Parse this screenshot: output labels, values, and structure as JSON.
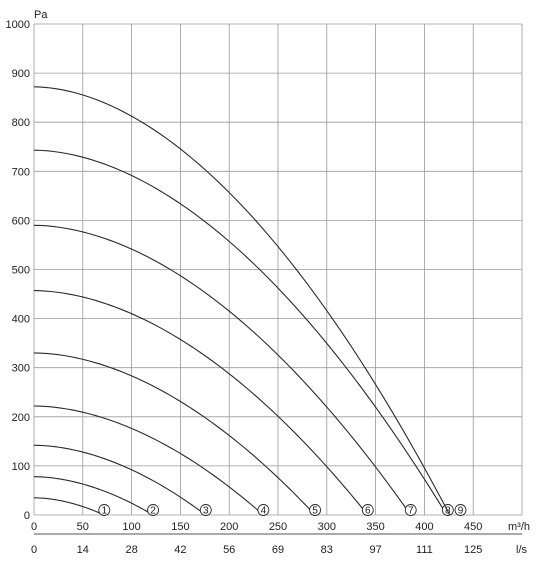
{
  "chart_data": {
    "type": "line",
    "y_unit": "Pa",
    "x_unit": "m³/h",
    "x2_unit": "l/s",
    "ylim": [
      0,
      1000
    ],
    "xlim": [
      0,
      500
    ],
    "grid": true,
    "y_ticks": [
      0,
      100,
      200,
      300,
      400,
      500,
      600,
      700,
      800,
      900,
      1000
    ],
    "x_ticks": [
      0,
      50,
      100,
      150,
      200,
      250,
      300,
      350,
      400,
      450
    ],
    "x2_ticks": [
      {
        "m3h": 0,
        "label": "0"
      },
      {
        "m3h": 50,
        "label": "14"
      },
      {
        "m3h": 100,
        "label": "28"
      },
      {
        "m3h": 150,
        "label": "42"
      },
      {
        "m3h": 200,
        "label": "56"
      },
      {
        "m3h": 250,
        "label": "69"
      },
      {
        "m3h": 300,
        "label": "83"
      },
      {
        "m3h": 350,
        "label": "97"
      },
      {
        "m3h": 400,
        "label": "111"
      },
      {
        "m3h": 450,
        "label": "125"
      }
    ],
    "series": [
      {
        "label": "1",
        "pmax": 35,
        "qmax": 72
      },
      {
        "label": "2",
        "pmax": 78,
        "qmax": 122
      },
      {
        "label": "3",
        "pmax": 142,
        "qmax": 176
      },
      {
        "label": "4",
        "pmax": 222,
        "qmax": 235
      },
      {
        "label": "5",
        "pmax": 330,
        "qmax": 288
      },
      {
        "label": "6",
        "pmax": 457,
        "qmax": 342
      },
      {
        "label": "7",
        "pmax": 590,
        "qmax": 386
      },
      {
        "label": "8",
        "pmax": 743,
        "qmax": 423
      },
      {
        "label": "9",
        "pmax": 872,
        "qmax": 426
      }
    ],
    "label_positions": [
      72,
      122,
      176,
      235,
      288,
      342,
      386,
      424,
      437
    ]
  }
}
